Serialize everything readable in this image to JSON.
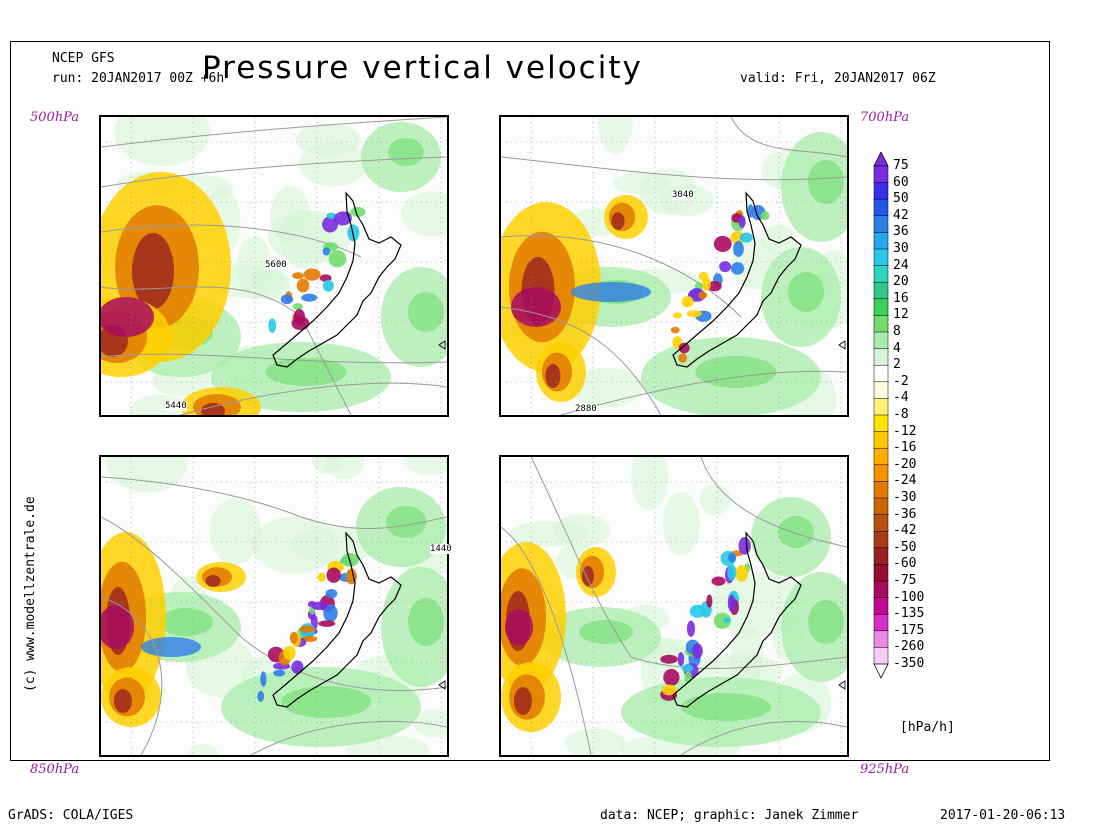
{
  "header": {
    "model": "NCEP GFS",
    "run": "run: 20JAN2017 00Z +6h",
    "title": "Pressure vertical velocity",
    "valid": "valid: Fri, 20JAN2017 06Z"
  },
  "panels": [
    {
      "level": "500hPa",
      "contour_labels": [
        "5600",
        "5440"
      ]
    },
    {
      "level": "700hPa",
      "contour_labels": [
        "3040",
        "2880"
      ]
    },
    {
      "level": "850hPa",
      "contour_labels": [
        "1440"
      ]
    },
    {
      "level": "925hPa",
      "contour_labels": []
    }
  ],
  "colorbar": {
    "unit": "[hPa/h]",
    "labels": [
      "75",
      "60",
      "50",
      "42",
      "36",
      "30",
      "24",
      "20",
      "16",
      "12",
      "8",
      "4",
      "2",
      "-2",
      "-4",
      "-8",
      "-12",
      "-16",
      "-20",
      "-24",
      "-30",
      "-36",
      "-42",
      "-50",
      "-60",
      "-75",
      "-100",
      "-135",
      "-175",
      "-260",
      "-350"
    ],
    "colors": [
      "#7b2be0",
      "#3a2fe8",
      "#2255e8",
      "#2f7ee8",
      "#2aa6ea",
      "#28c8e6",
      "#2bd6c0",
      "#2dc98a",
      "#3fd05a",
      "#70dc6e",
      "#a8ecaa",
      "#d6f5d6",
      "#ffffff",
      "#fffde0",
      "#fff27a",
      "#ffe400",
      "#ffc800",
      "#ffae00",
      "#f59400",
      "#e27a00",
      "#cc6400",
      "#b85010",
      "#a83a18",
      "#9a2020",
      "#980c30",
      "#a80a60",
      "#c40a90",
      "#d62cc8",
      "#e88ae8",
      "#f6ccf4"
    ]
  },
  "footer": {
    "left": "GrADS: COLA/IGES",
    "credit": "data: NCEP; graphic: Janek Zimmer",
    "timestamp": "2017-01-20-06:13",
    "copyright": "(c) www.modellzentrale.de"
  }
}
